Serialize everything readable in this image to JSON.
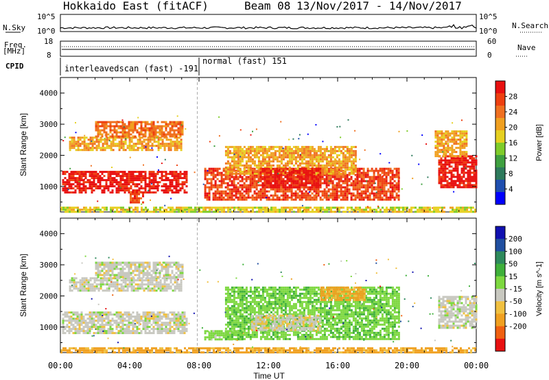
{
  "header": {
    "radar": "Hokkaido East (fitACF)",
    "beam": "Beam 08",
    "dates": "13/Nov/2017 - 14/Nov/2017"
  },
  "top_panels": {
    "nsky_label": "N.Sky",
    "nsky_ticks": [
      "10^5",
      "10^0"
    ],
    "nsearch_label": "N.Search",
    "nsearch_ticks": [
      "10^5",
      "10^0"
    ],
    "freq_label": "Freq.",
    "freq_unit": "[MHz]",
    "freq_ticks": [
      "18",
      "8"
    ],
    "nave_label": "Nave",
    "nave_ticks": [
      "60",
      "0"
    ],
    "cpid_label": "CPID",
    "cpid_segments": [
      {
        "label": "interleavedscan (fast) -191",
        "start_hour": 0,
        "end_hour": 7.9
      },
      {
        "label": "normal (fast) 151",
        "start_hour": 7.9,
        "end_hour": 24
      }
    ]
  },
  "chart_data": [
    {
      "type": "heatmap",
      "title": "",
      "xlabel": "Time UT",
      "ylabel": "Slant Range [km]",
      "xlim": [
        0,
        24
      ],
      "ylim": [
        180,
        4500
      ],
      "x_ticks": [
        "00:00",
        "04:00",
        "08:00",
        "12:00",
        "16:00",
        "20:00",
        "00:00"
      ],
      "y_ticks": [
        1000,
        2000,
        3000,
        4000
      ],
      "colorbar": {
        "label": "Power [dB]",
        "ticks": [
          4,
          8,
          12,
          16,
          20,
          24,
          28
        ],
        "range": [
          0,
          32
        ],
        "colors": [
          "#0000ff",
          "#1f4fb0",
          "#2e7a5c",
          "#3fa040",
          "#7fcc2a",
          "#e6d020",
          "#f0a020",
          "#f07020",
          "#ee4010",
          "#e81010"
        ]
      },
      "regions": [
        {
          "start_hour": 0.1,
          "end_hour": 7.3,
          "range_km": [
            800,
            1500
          ],
          "level": 29
        },
        {
          "start_hour": 0.5,
          "end_hour": 7.0,
          "range_km": [
            2200,
            2600
          ],
          "level": 22
        },
        {
          "start_hour": 2.0,
          "end_hour": 7.0,
          "range_km": [
            2600,
            3100
          ],
          "level": 24
        },
        {
          "start_hour": 4.0,
          "end_hour": 4.8,
          "range_km": [
            500,
            850
          ],
          "level": 28
        },
        {
          "start_hour": 8.3,
          "end_hour": 19.5,
          "range_km": [
            600,
            1600
          ],
          "level": 26
        },
        {
          "start_hour": 9.5,
          "end_hour": 17.0,
          "range_km": [
            1400,
            2300
          ],
          "level": 20
        },
        {
          "start_hour": 11.5,
          "end_hour": 15.0,
          "range_km": [
            1000,
            1600
          ],
          "level": 29
        },
        {
          "start_hour": 21.8,
          "end_hour": 24.0,
          "range_km": [
            1000,
            2000
          ],
          "level": 29
        },
        {
          "start_hour": 21.6,
          "end_hour": 23.5,
          "range_km": [
            2000,
            2800
          ],
          "level": 22
        },
        {
          "start_hour": 0.0,
          "end_hour": 24.0,
          "range_km": [
            180,
            350
          ],
          "level": 18
        }
      ]
    },
    {
      "type": "heatmap",
      "title": "",
      "xlabel": "Time UT",
      "ylabel": "Slant Range [km]",
      "xlim": [
        0,
        24
      ],
      "ylim": [
        180,
        4500
      ],
      "x_ticks": [
        "00:00",
        "04:00",
        "08:00",
        "12:00",
        "16:00",
        "20:00",
        "00:00"
      ],
      "y_ticks": [
        1000,
        2000,
        3000,
        4000
      ],
      "colorbar": {
        "label": "Velocity [m s^-1]",
        "ticks": [
          200,
          100,
          50,
          15,
          -15,
          -50,
          -100,
          -200
        ],
        "colors": [
          "#1010b0",
          "#204fa0",
          "#2e8a5c",
          "#3fb03a",
          "#7dd840",
          "#c8c8c0",
          "#f0c040",
          "#f0a020",
          "#f06010",
          "#e81010"
        ]
      },
      "regions": [
        {
          "start_hour": 0.1,
          "end_hour": 7.3,
          "range_km": [
            800,
            1500
          ],
          "value": 0
        },
        {
          "start_hour": 0.5,
          "end_hour": 7.0,
          "range_km": [
            2200,
            2600
          ],
          "value": 0
        },
        {
          "start_hour": 2.0,
          "end_hour": 7.0,
          "range_km": [
            2600,
            3100
          ],
          "value": 0
        },
        {
          "start_hour": 8.3,
          "end_hour": 10.5,
          "range_km": [
            600,
            900
          ],
          "value": 30
        },
        {
          "start_hour": 9.5,
          "end_hour": 19.5,
          "range_km": [
            600,
            2300
          ],
          "value": 40
        },
        {
          "start_hour": 11.0,
          "end_hour": 15.0,
          "range_km": [
            900,
            1400
          ],
          "value": -10
        },
        {
          "start_hour": 15.0,
          "end_hour": 17.5,
          "range_km": [
            1900,
            2300
          ],
          "value": -60
        },
        {
          "start_hour": 21.8,
          "end_hour": 24.0,
          "range_km": [
            1000,
            2000
          ],
          "value": 0
        },
        {
          "start_hour": 0.0,
          "end_hour": 24.0,
          "range_km": [
            180,
            350
          ],
          "value": -60
        }
      ]
    }
  ]
}
